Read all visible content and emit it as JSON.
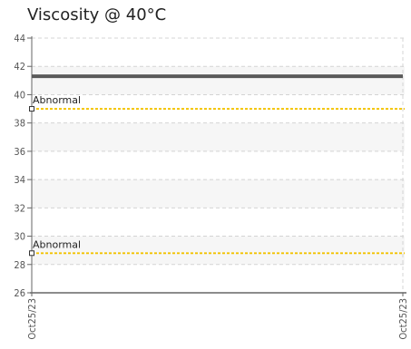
{
  "chart_data": {
    "type": "line",
    "title": "Viscosity @ 40°C",
    "ylim": [
      26,
      44
    ],
    "y_ticks": [
      26,
      28,
      30,
      32,
      34,
      36,
      38,
      40,
      42,
      44
    ],
    "x_ticks": [
      "Oct25/23",
      "Oct25/23"
    ],
    "grid": true,
    "series": [
      {
        "values": [
          41.3,
          41.3
        ],
        "color": "#5a5a5a"
      }
    ],
    "reference_lines": [
      {
        "label": "Abnormal",
        "value": 39.0,
        "color": "#f2c200"
      },
      {
        "label": "Abnormal",
        "value": 28.8,
        "color": "#f2c200"
      }
    ]
  }
}
